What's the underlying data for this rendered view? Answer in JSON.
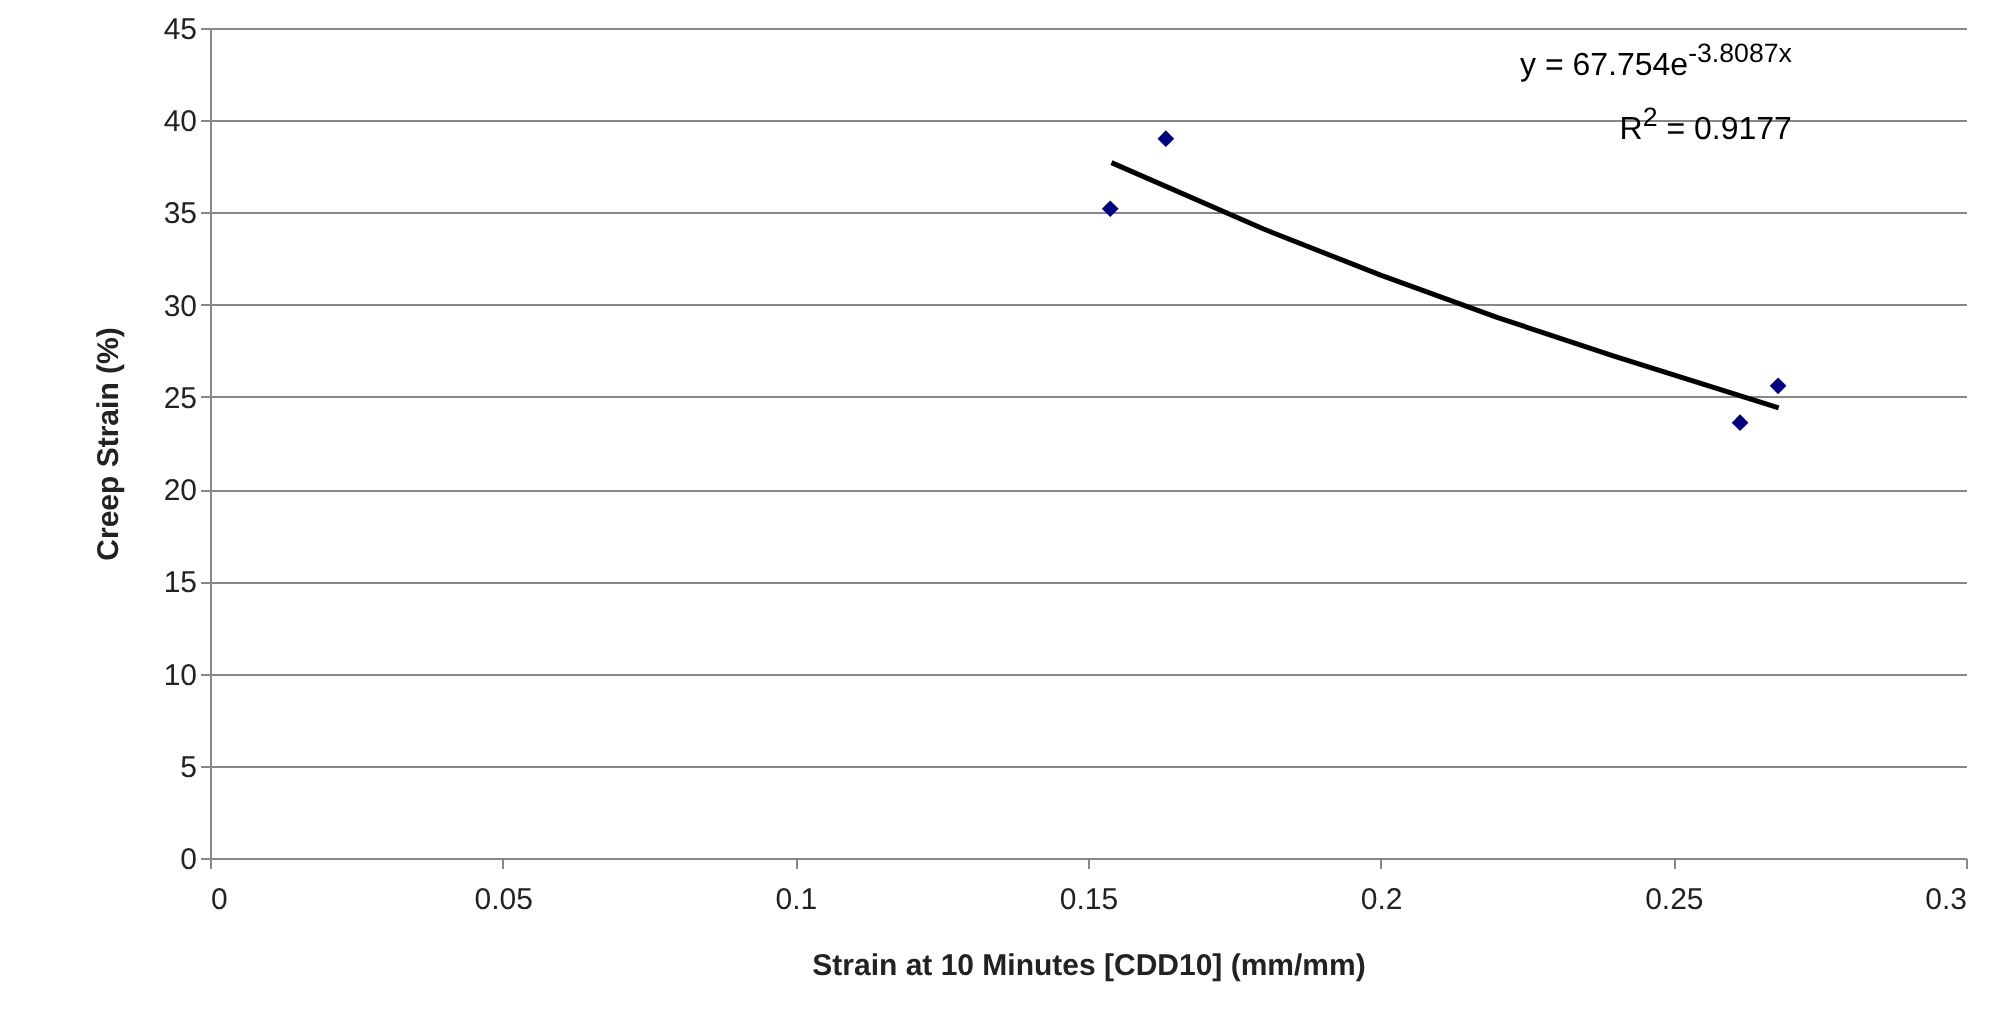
{
  "chart_data": {
    "type": "scatter",
    "xlabel": "Strain at 10 Minutes [CDD10] (mm/mm)",
    "ylabel": "Creep Strain (%)",
    "x": [
      0.1538,
      0.1633,
      0.2614,
      0.2679
    ],
    "series": [
      {
        "color": "#000080",
        "marker": "diamond",
        "values": [
          35.2,
          39.0,
          23.6,
          25.6
        ]
      },
      {
        "type": "line",
        "color": "#000000",
        "line_style": "solid",
        "x": [
          0.154,
          0.18,
          0.2,
          0.22,
          0.24,
          0.268
        ],
        "values": [
          37.7,
          34.1,
          31.6,
          29.3,
          27.2,
          24.4
        ]
      }
    ],
    "annotations": [
      "y = 67.754e$^{-3.8087x}$",
      "R$^{2}$ = 0.9177"
    ],
    "xlim": [
      0,
      0.3
    ],
    "xticks": [
      0,
      0.05,
      0.1,
      0.15,
      0.2,
      0.25,
      0.3
    ],
    "ylim": [
      0,
      45
    ],
    "yticks": [
      0,
      5,
      10,
      15,
      20,
      25,
      30,
      35,
      40,
      45
    ],
    "grid": "y"
  }
}
